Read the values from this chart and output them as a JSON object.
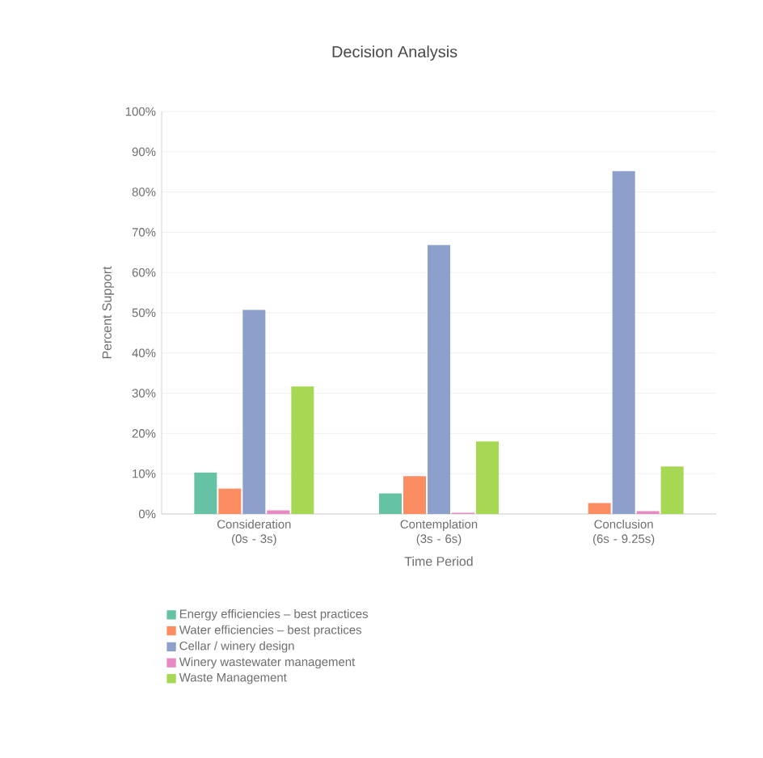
{
  "chart_data": {
    "type": "bar",
    "title": "Decision Analysis",
    "categories": [
      "Consideration (0s - 3s)",
      "Contemplation (3s - 6s)",
      "Conclusion (6s - 9.25s)"
    ],
    "series": [
      {
        "name": "Energy efficiencies – best practices",
        "color": "#66c2a5",
        "values": [
          10.3,
          5.1,
          0
        ]
      },
      {
        "name": "Water efficiencies – best practices",
        "color": "#fc8d62",
        "values": [
          6.3,
          9.4,
          2.7
        ]
      },
      {
        "name": "Cellar / winery design",
        "color": "#8da0cb",
        "values": [
          50.7,
          66.8,
          85.2
        ]
      },
      {
        "name": "Winery wastewater management",
        "color": "#e78ac3",
        "values": [
          0.9,
          0.3,
          0.7
        ]
      },
      {
        "name": "Waste Management",
        "color": "#a6d854",
        "values": [
          31.7,
          18.0,
          11.8
        ]
      }
    ],
    "xlabel": "Time Period",
    "ylabel": "Percent Support",
    "ylim": [
      0,
      100
    ],
    "yticks": [
      {
        "value": 0,
        "label": "0%"
      },
      {
        "value": 10,
        "label": "10%"
      },
      {
        "value": 20,
        "label": "20%"
      },
      {
        "value": 30,
        "label": "30%"
      },
      {
        "value": 40,
        "label": "40%"
      },
      {
        "value": 50,
        "label": "50%"
      },
      {
        "value": 60,
        "label": "60%"
      },
      {
        "value": 70,
        "label": "70%"
      },
      {
        "value": 80,
        "label": "80%"
      },
      {
        "value": 90,
        "label": "90%"
      },
      {
        "value": 100,
        "label": "100%"
      }
    ],
    "grid": "y",
    "legend": "bottom"
  }
}
